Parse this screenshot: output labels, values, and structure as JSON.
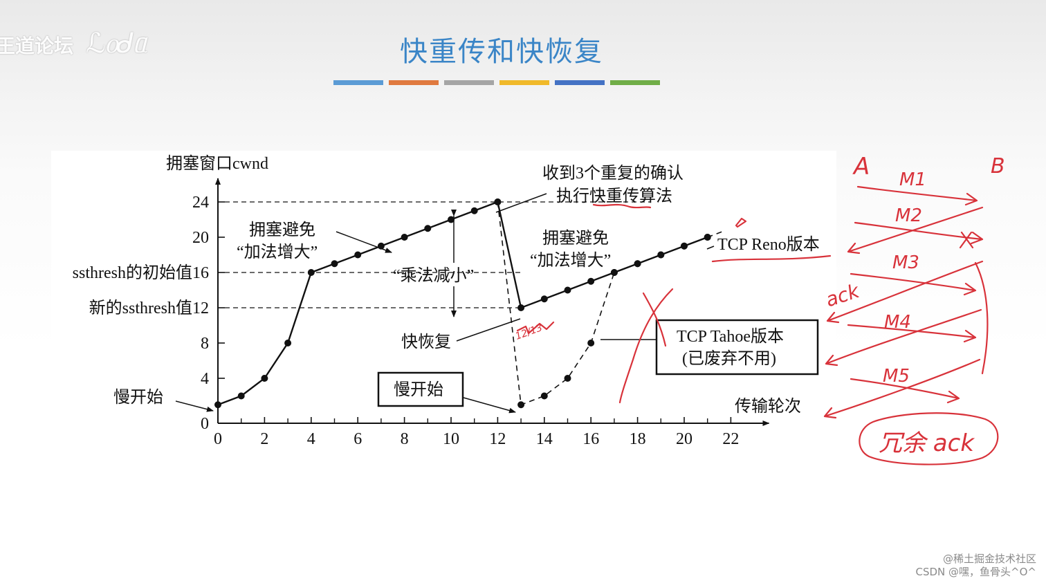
{
  "watermark": {
    "forum_text": "王道论坛"
  },
  "slide": {
    "title": "快重传和快恢复",
    "color_bars": [
      "#5b9bd5",
      "#e07a3f",
      "#a5a5a5",
      "#f0b92a",
      "#4472c4",
      "#70ad47"
    ]
  },
  "chart_data": {
    "type": "line",
    "ylabel": "拥塞窗口cwnd",
    "xlabel": "传输轮次",
    "xlim": [
      0,
      22
    ],
    "ylim": [
      0,
      24
    ],
    "x_ticks": [
      0,
      2,
      4,
      6,
      8,
      10,
      12,
      14,
      16,
      18,
      20,
      22
    ],
    "x_ticks_unlabeled": [
      1,
      3,
      5,
      7,
      9,
      11,
      13,
      15,
      17,
      19,
      21
    ],
    "y_ticks": [
      {
        "value": 0,
        "label": "0"
      },
      {
        "value": 4,
        "label": "4"
      },
      {
        "value": 8,
        "label": "8"
      },
      {
        "value": 12,
        "label": "新的ssthresh值12"
      },
      {
        "value": 16,
        "label": "ssthresh的初始值16"
      },
      {
        "value": 20,
        "label": "20"
      },
      {
        "value": 24,
        "label": "24"
      }
    ],
    "dashed_guides": [
      12,
      16,
      24
    ],
    "series": [
      {
        "name": "TCP Reno版本",
        "style": "solid",
        "points": [
          [
            0,
            1
          ],
          [
            1,
            2
          ],
          [
            2,
            4
          ],
          [
            3,
            8
          ],
          [
            4,
            16
          ],
          [
            5,
            17
          ],
          [
            6,
            18
          ],
          [
            7,
            19
          ],
          [
            8,
            20
          ],
          [
            9,
            21
          ],
          [
            10,
            22
          ],
          [
            11,
            23
          ],
          [
            12,
            24
          ],
          [
            13,
            12
          ],
          [
            14,
            13
          ],
          [
            15,
            14
          ],
          [
            16,
            15
          ],
          [
            17,
            16
          ],
          [
            18,
            17
          ],
          [
            19,
            18
          ],
          [
            20,
            19
          ],
          [
            21,
            20
          ]
        ]
      },
      {
        "name": "TCP Tahoe版本",
        "style": "dashed",
        "points": [
          [
            12,
            24
          ],
          [
            13,
            1
          ],
          [
            14,
            2
          ],
          [
            15,
            4
          ],
          [
            16,
            8
          ],
          [
            17,
            16
          ],
          [
            18,
            17
          ],
          [
            19,
            18
          ],
          [
            20,
            19
          ],
          [
            21,
            20
          ]
        ],
        "extend_to": [
          21.7,
          20.7
        ]
      }
    ],
    "annotations": {
      "slow_start_left": "慢开始",
      "slow_start_boxed": "慢开始",
      "ca_left_line1": "拥塞避免",
      "ca_left_line2": "“加法增大”",
      "ca_right_line1": "拥塞避免",
      "ca_right_line2": "“加法增大”",
      "multiplicative_decrease": "“乘法减小”",
      "dup_ack_line1": "收到3个重复的确认",
      "dup_ack_line2": "执行快重传算法",
      "fast_recovery": "快恢复",
      "reno_label": "TCP Reno版本",
      "tahoe_line1": "TCP Tahoe版本",
      "tahoe_line2": "(已废弃不用)"
    }
  },
  "handwriting": {
    "host_a": "A",
    "host_b": "B",
    "near_point": "12/13",
    "msgs": [
      "M1",
      "M2",
      "M3",
      "M4",
      "M5"
    ],
    "ack": "ack",
    "boxed_note": "冗余 ack"
  },
  "footer": {
    "line1": "@稀土掘金技术社区",
    "line2": "CSDN @嘿，鱼骨头^O^"
  }
}
